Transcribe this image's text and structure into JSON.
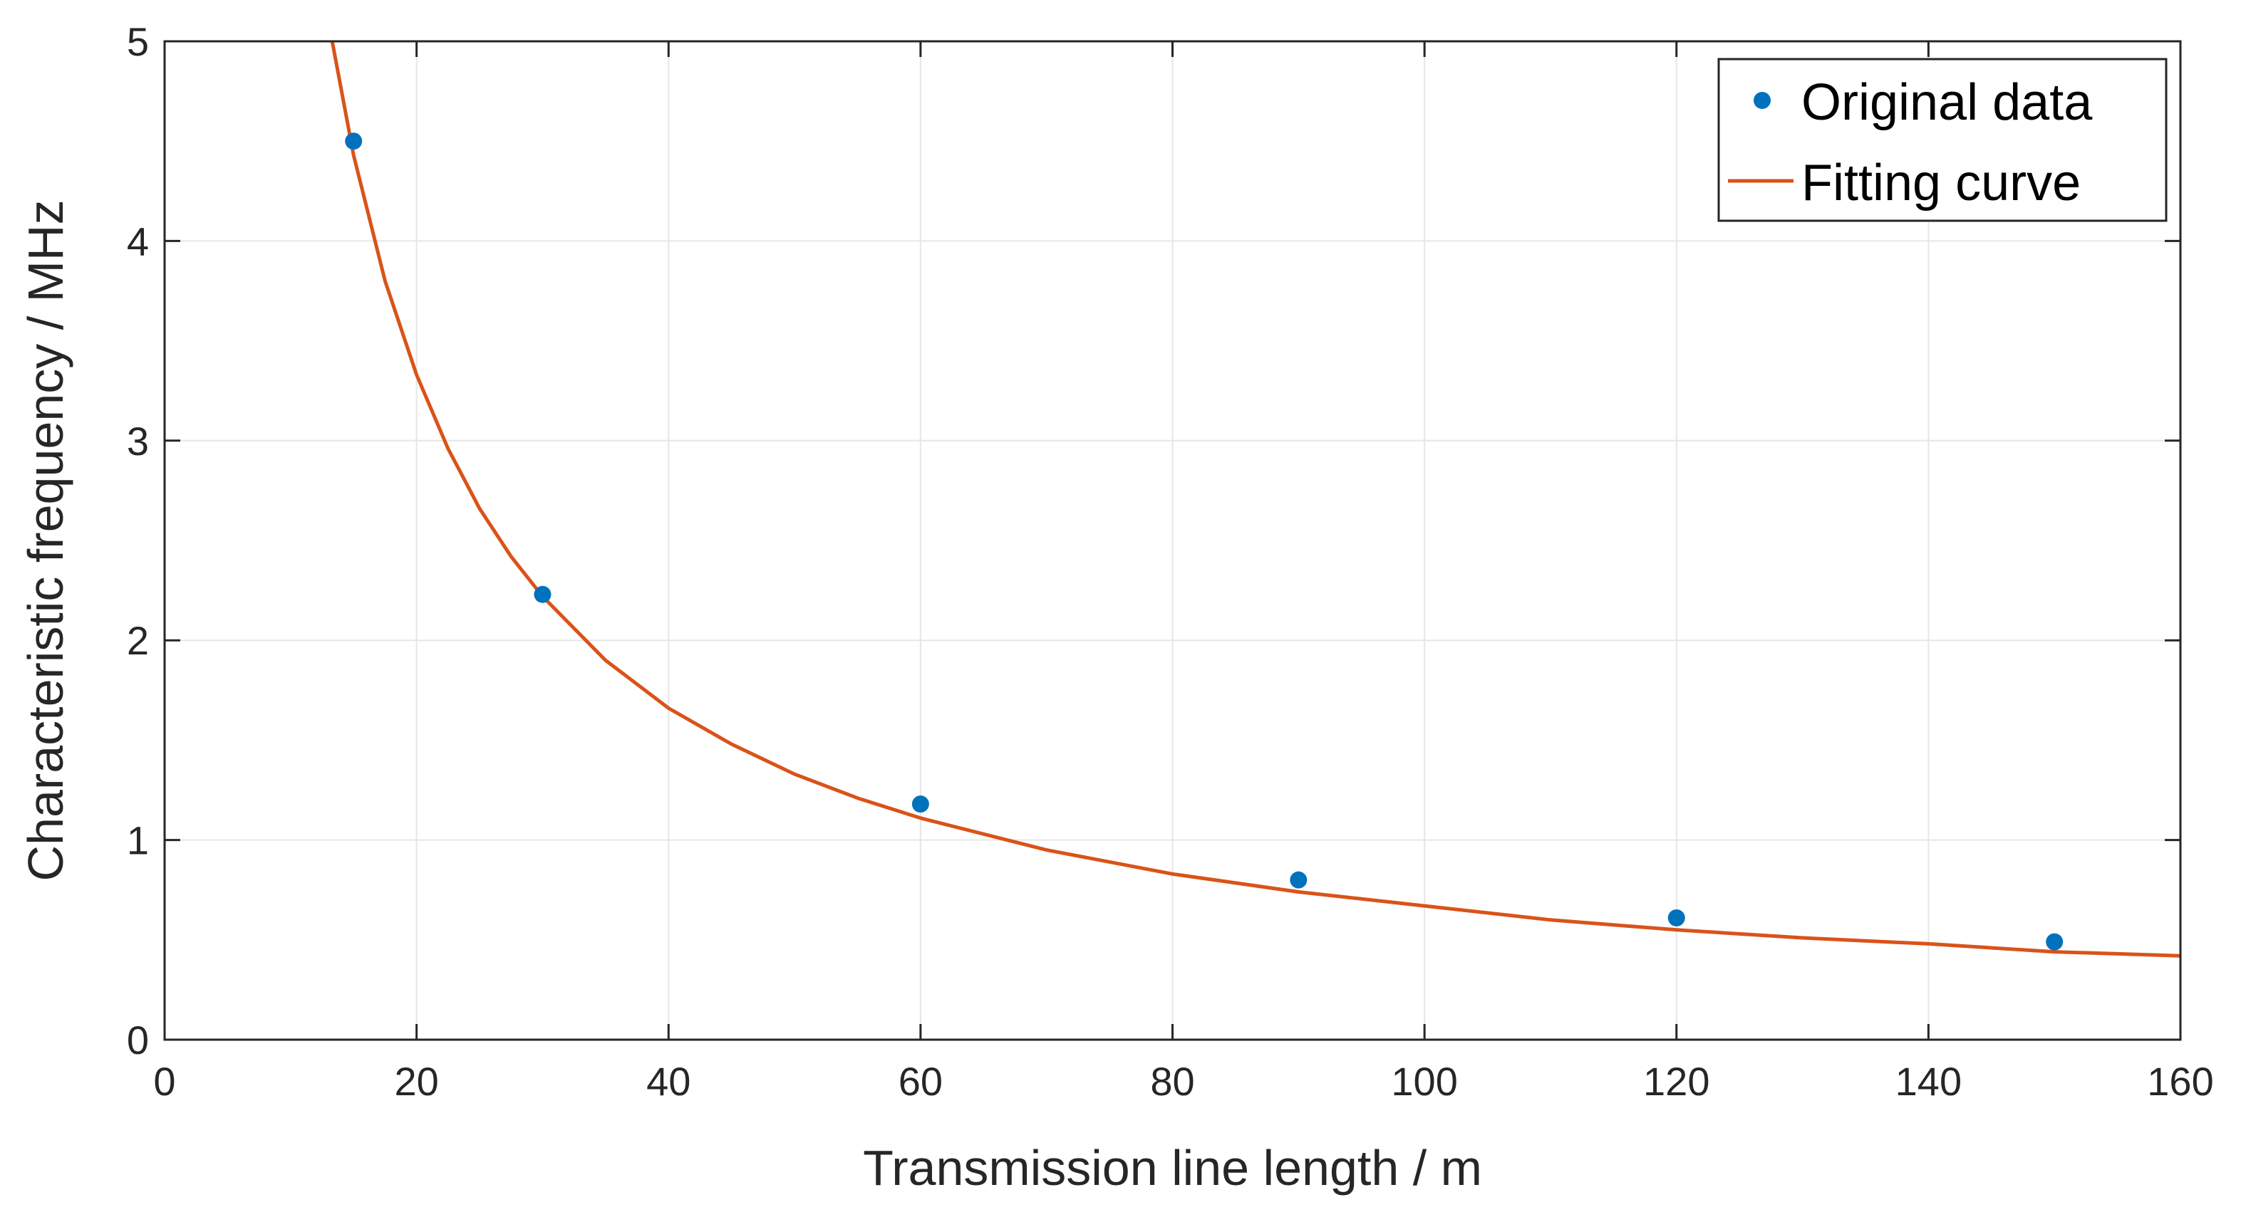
{
  "chart_data": {
    "type": "line",
    "title": "",
    "xlabel": "Transmission line length / m",
    "ylabel": "Characteristic frequency / MHz",
    "xlim": [
      0,
      160
    ],
    "ylim": [
      0,
      5
    ],
    "xticks": [
      0,
      20,
      40,
      60,
      80,
      100,
      120,
      140,
      160
    ],
    "yticks": [
      0,
      1,
      2,
      3,
      4,
      5
    ],
    "grid": true,
    "legend_position": "top-right",
    "series": [
      {
        "name": "Original data",
        "kind": "scatter",
        "color": "#0072BD",
        "x": [
          15,
          30,
          60,
          90,
          120,
          150
        ],
        "y": [
          4.5,
          2.23,
          1.18,
          0.8,
          0.61,
          0.49
        ]
      },
      {
        "name": "Fitting curve",
        "kind": "line",
        "color": "#D95319",
        "x": [
          13.3,
          15,
          17.5,
          20,
          22.5,
          25,
          27.5,
          30,
          35,
          40,
          45,
          50,
          55,
          60,
          70,
          80,
          90,
          100,
          110,
          120,
          130,
          140,
          150,
          160
        ],
        "y": [
          5.0,
          4.43,
          3.8,
          3.33,
          2.96,
          2.66,
          2.42,
          2.22,
          1.9,
          1.66,
          1.48,
          1.33,
          1.21,
          1.11,
          0.95,
          0.83,
          0.74,
          0.67,
          0.6,
          0.55,
          0.51,
          0.48,
          0.44,
          0.42
        ]
      }
    ]
  }
}
